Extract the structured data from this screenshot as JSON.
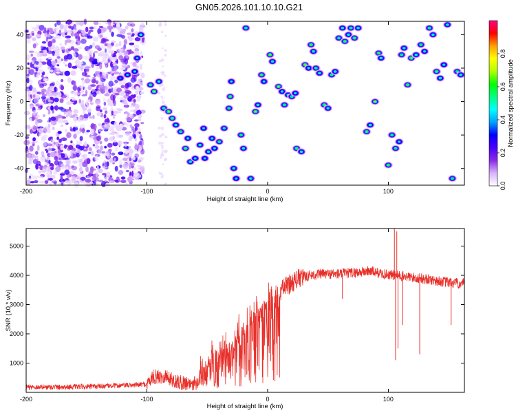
{
  "figure_title": "GN05.2026.101.10.10.G21",
  "chart_data": [
    {
      "type": "heatmap",
      "title": "GN05.2026.101.10.10.G21",
      "xlabel": "Height of straight line (km)",
      "ylabel": "Frequency (Hz)",
      "xlim": [
        -200,
        163
      ],
      "ylim": [
        -50,
        48
      ],
      "xticks": [
        -200,
        -100,
        0,
        100
      ],
      "yticks": [
        -40,
        -20,
        0,
        20,
        40
      ],
      "colorbar": {
        "label": "Normalized spectral amplitude",
        "range": [
          0,
          1
        ],
        "ticks": [
          0,
          0.2,
          0.4,
          0.6,
          0.8
        ],
        "colormap": [
          "#ffffff",
          "#d9b3ff",
          "#8a2be2",
          "#4b00ff",
          "#0000ff",
          "#00a0ff",
          "#00ffff",
          "#00ff80",
          "#00ff00",
          "#b0ff00",
          "#ffff00",
          "#ffa000",
          "#ff0000",
          "#ff0080"
        ]
      },
      "blobs": [
        [
          -110,
          18,
          0.5
        ],
        [
          -116,
          16,
          0.45
        ],
        [
          -122,
          14,
          0.4
        ],
        [
          -105,
          40,
          0.55
        ],
        [
          -108,
          26,
          0.45
        ],
        [
          -97,
          10,
          0.6
        ],
        [
          -94,
          6,
          0.7
        ],
        [
          -90,
          12,
          0.55
        ],
        [
          -86,
          -4,
          0.6
        ],
        [
          -82,
          -6,
          0.7
        ],
        [
          -79,
          -10,
          0.65
        ],
        [
          -76,
          -14,
          0.55
        ],
        [
          -72,
          -18,
          0.6
        ],
        [
          -68,
          -28,
          0.65
        ],
        [
          -66,
          -22,
          0.5
        ],
        [
          -64,
          -36,
          0.55
        ],
        [
          -60,
          -34,
          0.5
        ],
        [
          -56,
          -26,
          0.55
        ],
        [
          -53,
          -16,
          0.5
        ],
        [
          -52,
          -34,
          0.45
        ],
        [
          -49,
          -30,
          0.55
        ],
        [
          -46,
          -22,
          0.5
        ],
        [
          -44,
          -28,
          0.5
        ],
        [
          -40,
          -24,
          0.6
        ],
        [
          -36,
          -16,
          0.55
        ],
        [
          -32,
          -4,
          0.6
        ],
        [
          -31,
          3,
          0.65
        ],
        [
          -30,
          12,
          0.5
        ],
        [
          -28,
          -40,
          0.55
        ],
        [
          -26,
          -46,
          0.5
        ],
        [
          -22,
          -20,
          0.6
        ],
        [
          -20,
          -28,
          0.55
        ],
        [
          -18,
          44,
          0.6
        ],
        [
          -14,
          -46,
          0.55
        ],
        [
          -10,
          -6,
          0.7
        ],
        [
          -8,
          -2,
          0.55
        ],
        [
          -5,
          16,
          0.65
        ],
        [
          -3,
          12,
          0.5
        ],
        [
          2,
          28,
          0.7
        ],
        [
          4,
          24,
          0.55
        ],
        [
          9,
          9,
          0.7
        ],
        [
          12,
          6,
          0.5
        ],
        [
          14,
          -2,
          0.6
        ],
        [
          17,
          4,
          0.55
        ],
        [
          20,
          3,
          0.6
        ],
        [
          23,
          5,
          0.5
        ],
        [
          24,
          -28,
          0.65
        ],
        [
          28,
          -30,
          0.55
        ],
        [
          31,
          22,
          0.7
        ],
        [
          34,
          20,
          0.5
        ],
        [
          36,
          34,
          0.65
        ],
        [
          38,
          30,
          0.55
        ],
        [
          40,
          20,
          0.6
        ],
        [
          43,
          17,
          0.55
        ],
        [
          47,
          -2,
          0.65
        ],
        [
          50,
          -4,
          0.55
        ],
        [
          53,
          16,
          0.6
        ],
        [
          56,
          18,
          0.55
        ],
        [
          59,
          38,
          0.6
        ],
        [
          62,
          44,
          0.55
        ],
        [
          64,
          36,
          0.65
        ],
        [
          67,
          40,
          0.55
        ],
        [
          69,
          44,
          0.6
        ],
        [
          72,
          38,
          0.65
        ],
        [
          75,
          44,
          0.55
        ],
        [
          82,
          -18,
          0.65
        ],
        [
          85,
          -14,
          0.55
        ],
        [
          89,
          0,
          0.7
        ],
        [
          92,
          29,
          0.65
        ],
        [
          94,
          26,
          0.55
        ],
        [
          100,
          -38,
          0.65
        ],
        [
          103,
          -20,
          0.6
        ],
        [
          106,
          -28,
          0.6
        ],
        [
          109,
          -24,
          0.5
        ],
        [
          111,
          28,
          0.6
        ],
        [
          113,
          32,
          0.55
        ],
        [
          116,
          10,
          0.65
        ],
        [
          119,
          26,
          0.7
        ],
        [
          123,
          28,
          0.55
        ],
        [
          127,
          34,
          0.6
        ],
        [
          130,
          30,
          0.5
        ],
        [
          134,
          44,
          0.6
        ],
        [
          137,
          40,
          0.55
        ],
        [
          140,
          18,
          0.65
        ],
        [
          143,
          14,
          0.55
        ],
        [
          146,
          22,
          0.5
        ],
        [
          149,
          46,
          0.55
        ],
        [
          153,
          -46,
          0.6
        ],
        [
          157,
          18,
          0.6
        ],
        [
          160,
          16,
          0.55
        ]
      ]
    },
    {
      "type": "line",
      "title": "",
      "xlabel": "Height of straight line (km)",
      "ylabel": "SNR (10 * v/v)",
      "xlim": [
        -200,
        163
      ],
      "ylim": [
        0,
        5600
      ],
      "xticks": [
        -200,
        -100,
        0,
        100
      ],
      "yticks": [
        1000,
        2000,
        3000,
        4000,
        5000
      ],
      "color": "#e8302a",
      "trend": {
        "x": [
          -200,
          -150,
          -110,
          -100,
          -95,
          -85,
          -75,
          -62,
          -52,
          -42,
          -32,
          -22,
          -14,
          -6,
          0,
          8,
          16,
          24,
          34,
          45,
          60,
          75,
          85,
          95,
          105,
          115,
          125,
          135,
          145,
          155,
          163
        ],
        "y": [
          180,
          190,
          250,
          280,
          520,
          560,
          350,
          300,
          800,
          1300,
          1700,
          2000,
          2300,
          2800,
          3100,
          3400,
          3650,
          3850,
          4000,
          4050,
          4050,
          4100,
          4150,
          4050,
          4000,
          3950,
          3900,
          3850,
          3780,
          3730,
          3700
        ]
      },
      "spikes": [
        {
          "x": 105,
          "y": 5600
        },
        {
          "x": 107,
          "y": 5500
        },
        {
          "x": 106,
          "y": 1100
        },
        {
          "x": 108,
          "y": 1500
        },
        {
          "x": 112,
          "y": 2300
        },
        {
          "x": 126,
          "y": 1300
        },
        {
          "x": 152,
          "y": 2300
        },
        {
          "x": 62,
          "y": 3200
        }
      ]
    }
  ]
}
